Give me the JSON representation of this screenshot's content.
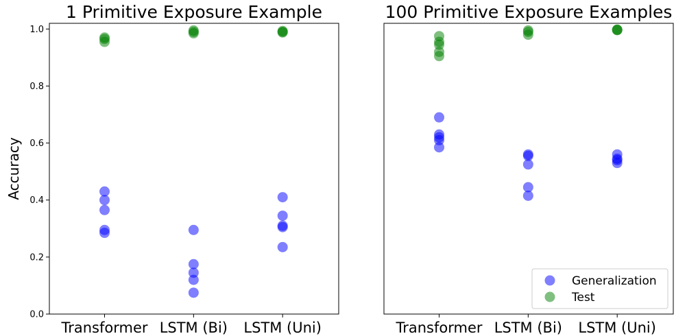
{
  "chart_data": [
    {
      "type": "scatter",
      "title": "1 Primitive Exposure Example",
      "ylabel": "Accuracy",
      "categories": [
        "Transformer",
        "LSTM (Bi)",
        "LSTM (Uni)"
      ],
      "ylim": [
        0.0,
        1.02
      ],
      "yticks": [
        "0.0",
        "0.2",
        "0.4",
        "0.6",
        "0.8",
        "1.0"
      ],
      "show_yticks": true,
      "series": [
        {
          "name": "Generalization",
          "color": "#0000ff",
          "points": [
            [
              0,
              0.43
            ],
            [
              0,
              0.4
            ],
            [
              0,
              0.365
            ],
            [
              0,
              0.295
            ],
            [
              0,
              0.285
            ],
            [
              1,
              0.295
            ],
            [
              1,
              0.175
            ],
            [
              1,
              0.145
            ],
            [
              1,
              0.12
            ],
            [
              1,
              0.075
            ],
            [
              2,
              0.41
            ],
            [
              2,
              0.345
            ],
            [
              2,
              0.31
            ],
            [
              2,
              0.305
            ],
            [
              2,
              0.235
            ]
          ]
        },
        {
          "name": "Test",
          "color": "#008000",
          "points": [
            [
              0,
              0.97
            ],
            [
              0,
              0.965
            ],
            [
              0,
              0.955
            ],
            [
              1,
              0.995
            ],
            [
              1,
              0.99
            ],
            [
              1,
              0.985
            ],
            [
              2,
              0.993
            ],
            [
              2,
              0.99
            ],
            [
              2,
              0.988
            ]
          ]
        }
      ]
    },
    {
      "type": "scatter",
      "title": "100 Primitive Exposure Examples",
      "categories": [
        "Transformer",
        "LSTM (Bi)",
        "LSTM (Uni)"
      ],
      "ylim": [
        0.0,
        1.02
      ],
      "show_yticks": false,
      "legend": {
        "position": "lower-right",
        "entries": [
          "Generalization",
          "Test"
        ]
      },
      "series": [
        {
          "name": "Generalization",
          "color": "#0000ff",
          "points": [
            [
              0,
              0.69
            ],
            [
              0,
              0.63
            ],
            [
              0,
              0.62
            ],
            [
              0,
              0.61
            ],
            [
              0,
              0.585
            ],
            [
              1,
              0.56
            ],
            [
              1,
              0.555
            ],
            [
              1,
              0.525
            ],
            [
              1,
              0.445
            ],
            [
              1,
              0.415
            ],
            [
              2,
              0.56
            ],
            [
              2,
              0.545
            ],
            [
              2,
              0.54
            ],
            [
              2,
              0.53
            ]
          ]
        },
        {
          "name": "Test",
          "color": "#008000",
          "points": [
            [
              0,
              0.975
            ],
            [
              0,
              0.955
            ],
            [
              0,
              0.945
            ],
            [
              0,
              0.92
            ],
            [
              0,
              0.905
            ],
            [
              1,
              0.995
            ],
            [
              1,
              0.99
            ],
            [
              1,
              0.98
            ],
            [
              2,
              0.998
            ],
            [
              2,
              0.997
            ],
            [
              2,
              0.996
            ]
          ]
        }
      ]
    }
  ]
}
